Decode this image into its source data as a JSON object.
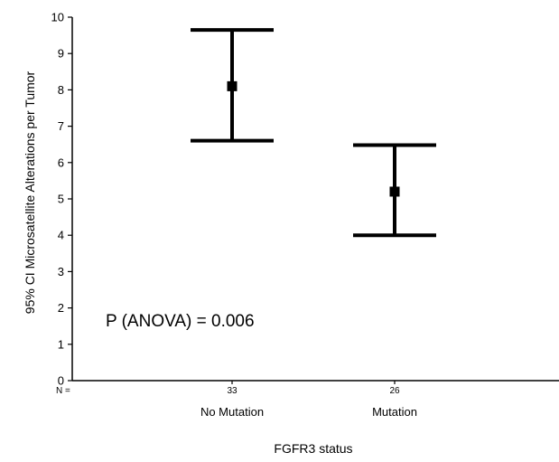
{
  "chart_data": {
    "type": "errorbar",
    "title": "",
    "xlabel": "FGFR3 status",
    "ylabel": "95% CI Microsatellite Alterations per Tumor",
    "ylim": [
      0,
      10
    ],
    "yticks": [
      "0",
      "1",
      "2",
      "3",
      "4",
      "5",
      "6",
      "7",
      "8",
      "9",
      "10"
    ],
    "n_prefix": "N =",
    "categories": [
      "No Mutation",
      "Mutation"
    ],
    "n_values": [
      "33",
      "26"
    ],
    "means": [
      8.1,
      5.2
    ],
    "ci_lower": [
      6.6,
      4.0
    ],
    "ci_upper": [
      9.65,
      6.48
    ],
    "annotation": "P (ANOVA) = 0.006",
    "grid": false,
    "legend": "none"
  }
}
